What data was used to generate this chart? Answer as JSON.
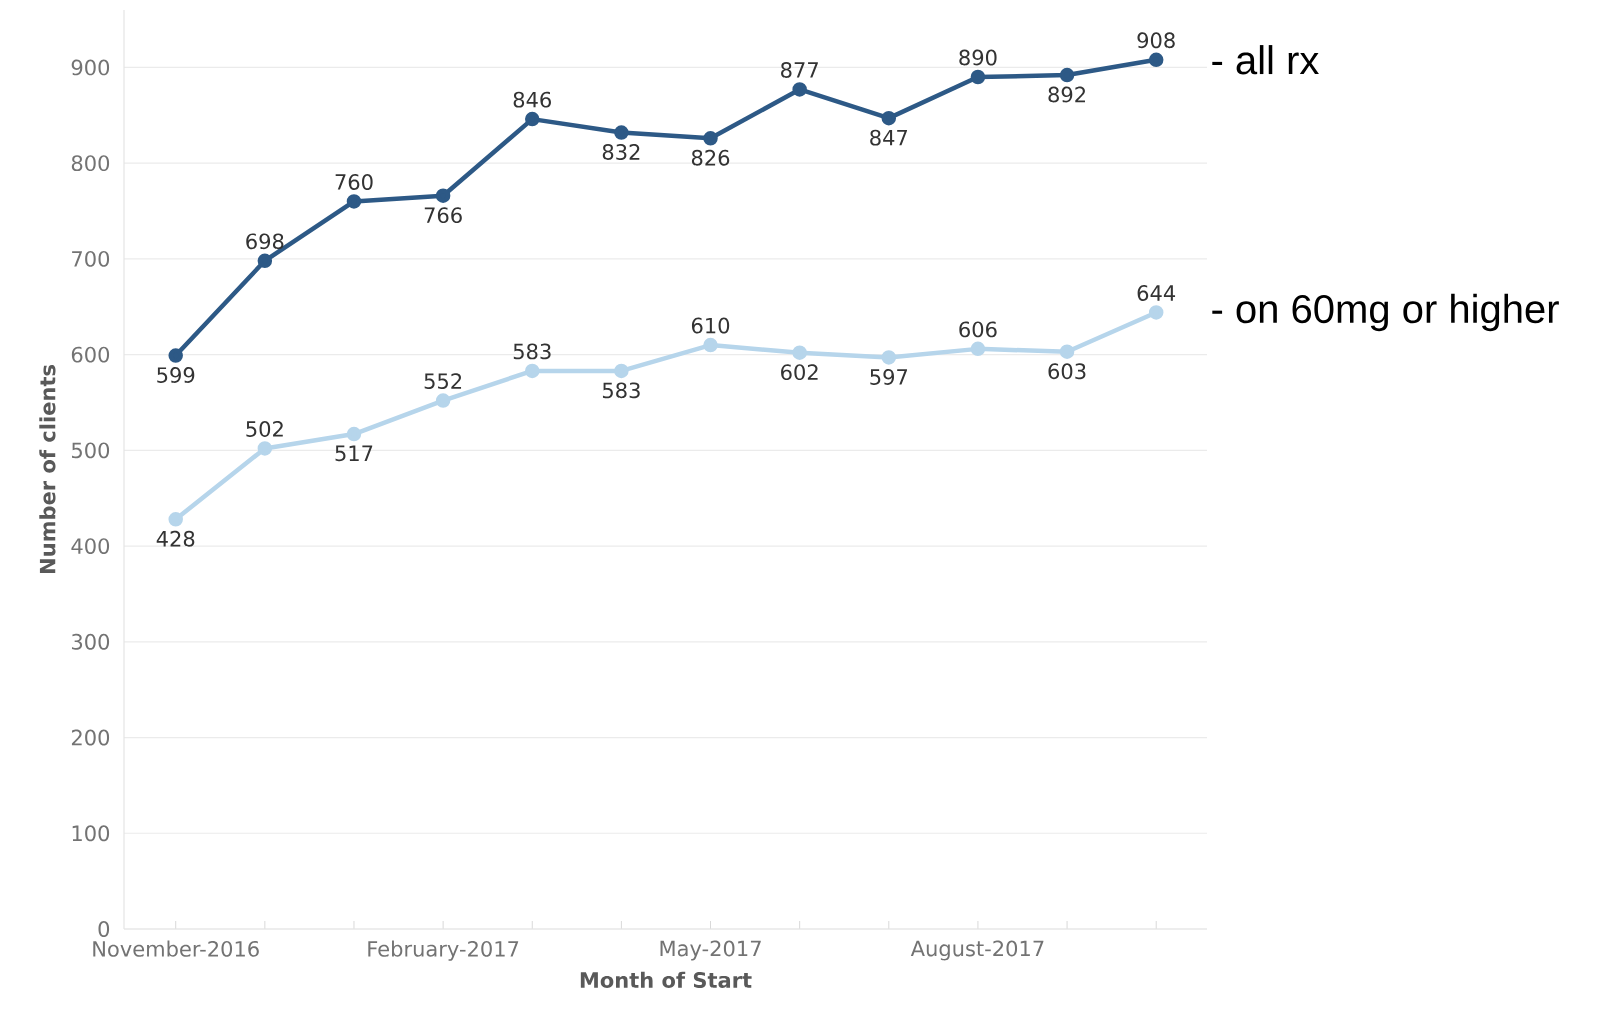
{
  "chart_data": {
    "type": "line",
    "xlabel": "Month of Start",
    "ylabel": "Number of clients",
    "categories": [
      "November-2016",
      null,
      null,
      "February-2017",
      null,
      null,
      "May-2017",
      null,
      null,
      "August-2017",
      null,
      null
    ],
    "series": [
      {
        "name": "- all rx",
        "color": "#2d5986",
        "values": [
          599,
          698,
          760,
          766,
          846,
          832,
          826,
          877,
          847,
          890,
          892,
          908
        ]
      },
      {
        "name": "- on 60mg or higher",
        "color": "#b6d5eb",
        "values": [
          428,
          502,
          517,
          552,
          583,
          583,
          610,
          602,
          597,
          606,
          603,
          644
        ]
      }
    ],
    "ylim": [
      0,
      960
    ],
    "yticks": [
      0,
      100,
      200,
      300,
      400,
      500,
      600,
      700,
      800,
      900
    ],
    "grid": "y",
    "legend": false,
    "marker": "circle",
    "line_style": "solid",
    "data_labels": true
  }
}
